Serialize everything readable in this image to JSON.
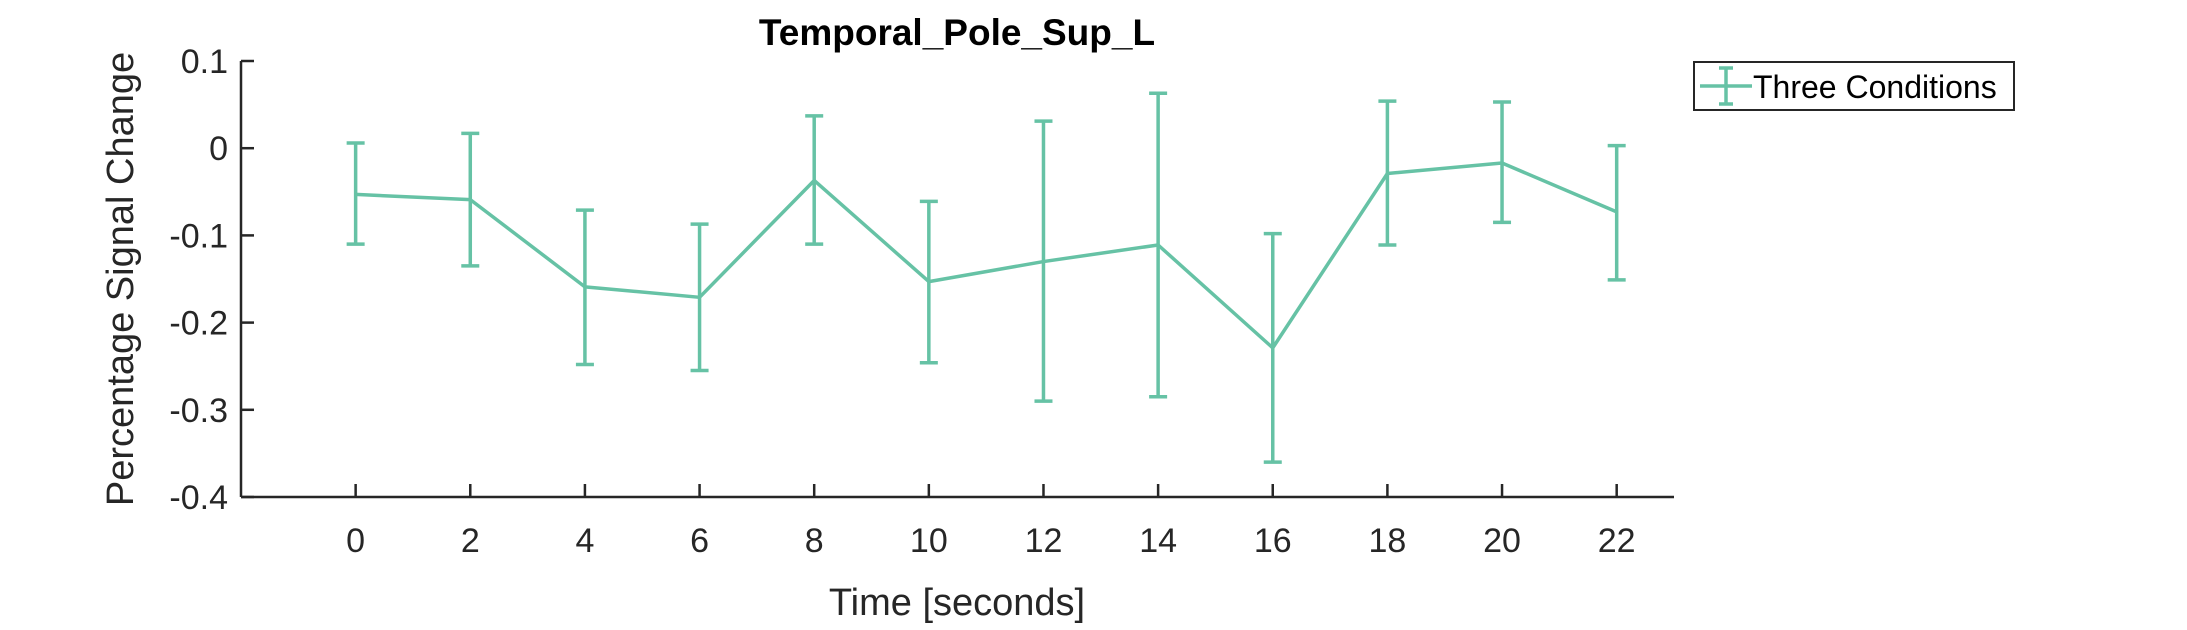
{
  "chart_data": {
    "type": "line",
    "title": "Temporal_Pole_Sup_L",
    "xlabel": "Time [seconds]",
    "ylabel": "Percentage Signal Change",
    "x": [
      0,
      2,
      4,
      6,
      8,
      10,
      12,
      14,
      16,
      18,
      20,
      22
    ],
    "xticks": [
      "0",
      "2",
      "4",
      "6",
      "8",
      "10",
      "12",
      "14",
      "16",
      "18",
      "20",
      "22"
    ],
    "xlim": [
      -2,
      23
    ],
    "ylim": [
      -0.4,
      0.1
    ],
    "yticks": [
      "0.1",
      "0",
      "-0.1",
      "-0.2",
      "-0.3",
      "-0.4"
    ],
    "ytick_values": [
      0.1,
      0,
      -0.1,
      -0.2,
      -0.3,
      -0.4
    ],
    "grid": false,
    "legend_position": "top-right, outside plot",
    "series": [
      {
        "name": "Three Conditions",
        "color": "#66c2a5",
        "values": [
          -0.053,
          -0.059,
          -0.159,
          -0.171,
          -0.037,
          -0.153,
          -0.13,
          -0.111,
          -0.229,
          -0.029,
          -0.017,
          -0.073
        ],
        "err_low": [
          -0.11,
          -0.135,
          -0.248,
          -0.255,
          -0.11,
          -0.246,
          -0.29,
          -0.285,
          -0.36,
          -0.111,
          -0.085,
          -0.151
        ],
        "err_high": [
          0.006,
          0.017,
          -0.071,
          -0.087,
          0.037,
          -0.061,
          0.031,
          0.063,
          -0.098,
          0.054,
          0.053,
          0.003
        ]
      }
    ]
  }
}
